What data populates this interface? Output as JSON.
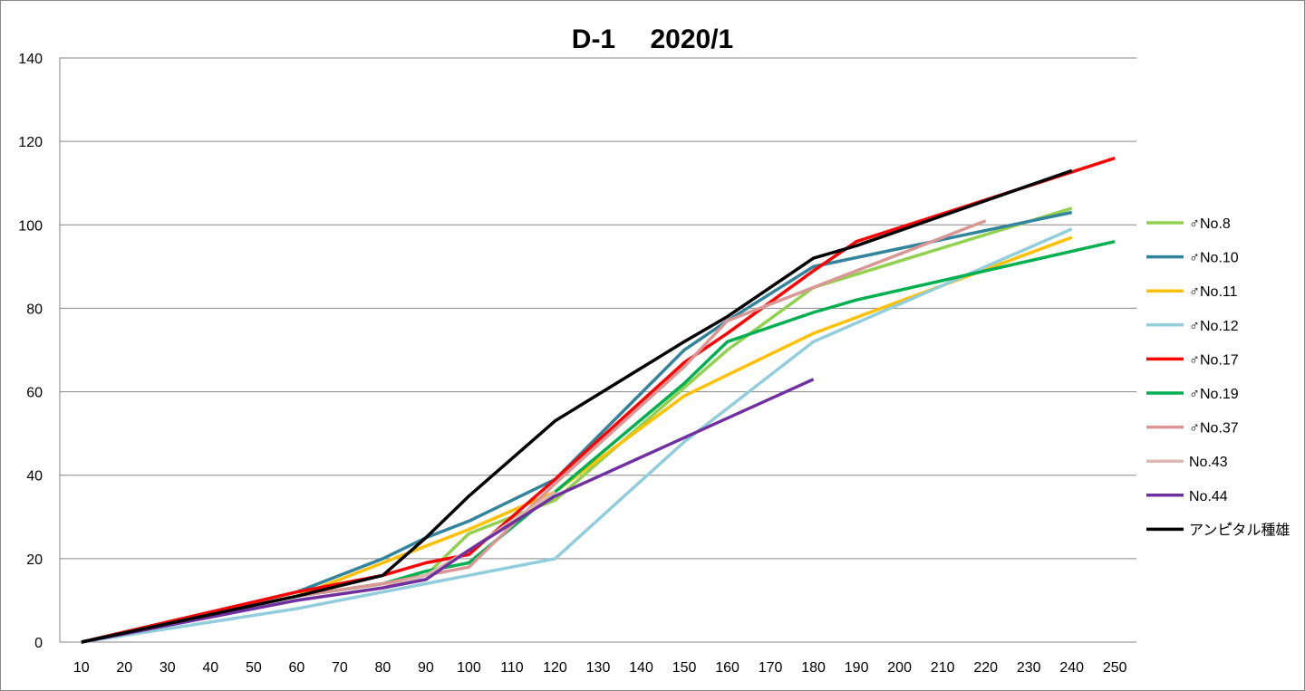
{
  "chart_data": {
    "type": "line",
    "title": "D-1　 2020/1",
    "xlabel": "",
    "ylabel": "",
    "ylim": [
      0,
      140
    ],
    "y_ticks": [
      0,
      20,
      40,
      60,
      80,
      100,
      120,
      140
    ],
    "grid": true,
    "legend_position": "right",
    "x_categories": [
      10,
      20,
      30,
      40,
      50,
      60,
      70,
      80,
      90,
      100,
      110,
      120,
      130,
      140,
      150,
      160,
      170,
      180,
      190,
      200,
      210,
      220,
      230,
      240,
      250
    ],
    "series": [
      {
        "name": "♂No.8",
        "color": "#92D050",
        "x": [
          10,
          60,
          80,
          90,
          100,
          120,
          150,
          160,
          180,
          240
        ],
        "y": [
          0,
          11,
          14,
          16,
          26,
          34,
          61,
          70,
          85,
          104
        ]
      },
      {
        "name": "♂No.10",
        "color": "#31849B",
        "x": [
          10,
          60,
          80,
          90,
          100,
          120,
          150,
          160,
          180,
          240
        ],
        "y": [
          0,
          12,
          20,
          25,
          29,
          39,
          70,
          77,
          90,
          103
        ]
      },
      {
        "name": "♂No.11",
        "color": "#FFC000",
        "x": [
          10,
          60,
          80,
          90,
          100,
          120,
          150,
          160,
          180,
          240
        ],
        "y": [
          0,
          11,
          19,
          23,
          27,
          36,
          59,
          64,
          74,
          97
        ]
      },
      {
        "name": "♂No.12",
        "color": "#92CDDC",
        "x": [
          10,
          60,
          80,
          90,
          100,
          120,
          150,
          160,
          180,
          240
        ],
        "y": [
          0,
          8,
          12,
          14,
          16,
          20,
          48,
          56,
          72,
          99
        ]
      },
      {
        "name": "♂No.17",
        "color": "#FF0000",
        "x": [
          10,
          60,
          80,
          90,
          100,
          120,
          150,
          160,
          180,
          190,
          250
        ],
        "y": [
          0,
          12,
          16,
          19,
          21,
          39,
          67,
          74,
          89,
          96,
          116
        ]
      },
      {
        "name": "♂No.19",
        "color": "#00B050",
        "x": [
          10,
          60,
          80,
          90,
          100,
          120,
          150,
          160,
          180,
          190,
          250
        ],
        "y": [
          0,
          11,
          14,
          17,
          19,
          36,
          62,
          72,
          79,
          82,
          96
        ]
      },
      {
        "name": "♂No.37",
        "color": "#D99694",
        "x": [
          10,
          60,
          80,
          90,
          100,
          120,
          150,
          160,
          180,
          220
        ],
        "y": [
          0,
          11,
          14,
          16,
          18,
          38,
          66,
          77,
          85,
          101
        ]
      },
      {
        "name": "No.43",
        "color": "#DDB8B0",
        "x": [
          10,
          60,
          80,
          90,
          100,
          120
        ],
        "y": [
          0,
          10,
          13,
          16,
          22,
          36
        ]
      },
      {
        "name": "No.44",
        "color": "#7030A0",
        "x": [
          10,
          60,
          80,
          90,
          100,
          120,
          150,
          180
        ],
        "y": [
          0,
          10,
          13,
          15,
          22,
          35,
          49,
          63
        ]
      },
      {
        "name": "アンビ゚タル種雄",
        "color": "#000000",
        "x": [
          10,
          60,
          80,
          90,
          100,
          120,
          150,
          160,
          180,
          190,
          240
        ],
        "y": [
          0,
          11,
          16,
          25,
          35,
          53,
          72,
          78,
          92,
          95,
          113
        ]
      }
    ]
  }
}
